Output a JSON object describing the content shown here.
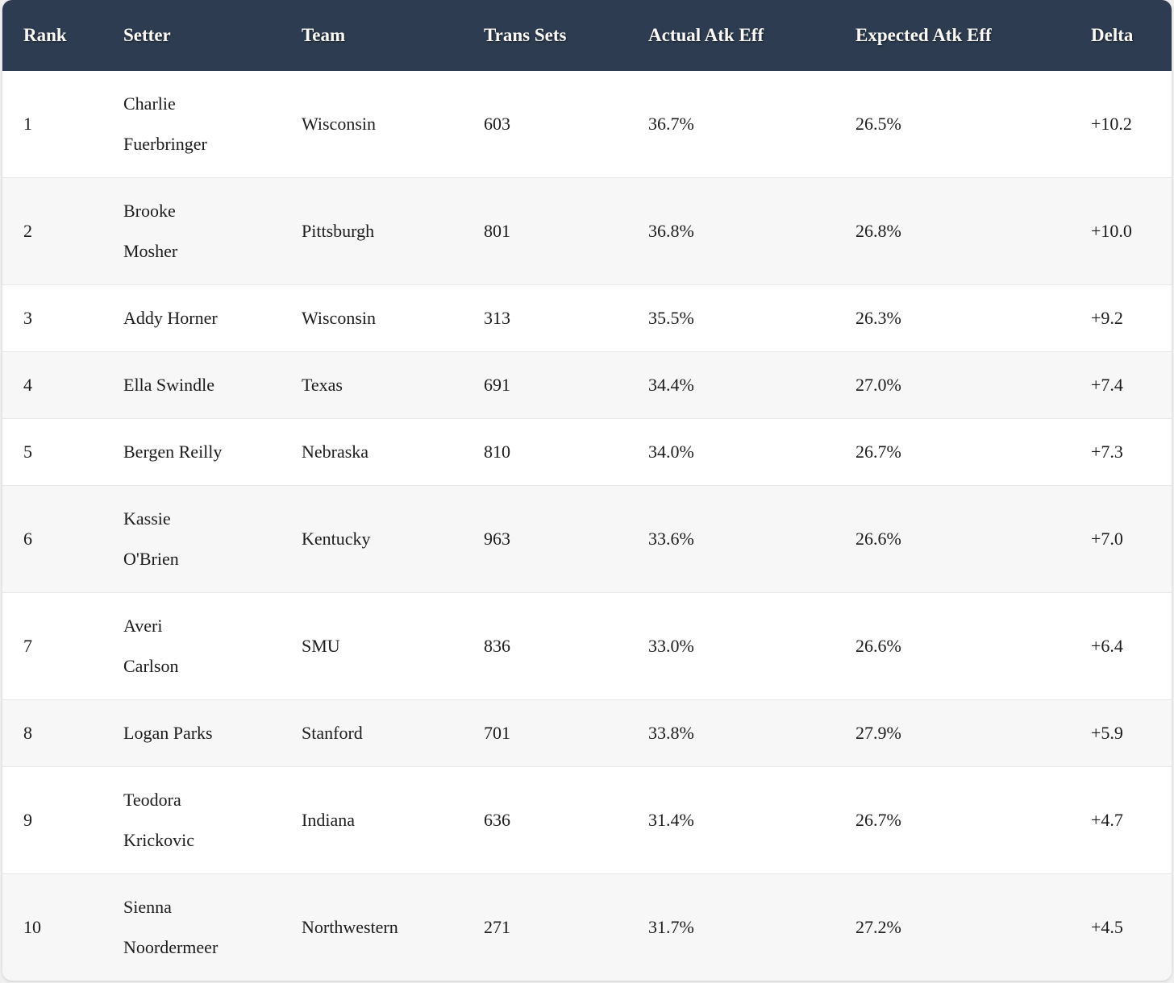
{
  "chart_data": {
    "type": "table",
    "columns": [
      {
        "key": "rank",
        "label": "Rank"
      },
      {
        "key": "setter",
        "label": "Setter"
      },
      {
        "key": "team",
        "label": "Team"
      },
      {
        "key": "trans_sets",
        "label": "Trans Sets"
      },
      {
        "key": "actual_atk_eff",
        "label": "Actual Atk Eff"
      },
      {
        "key": "expected_atk_eff",
        "label": "Expected Atk Eff"
      },
      {
        "key": "delta",
        "label": "Delta"
      }
    ],
    "rows": [
      {
        "rank": "1",
        "setter": [
          "Charlie",
          "Fuerbringer"
        ],
        "team": "Wisconsin",
        "trans_sets": "603",
        "actual_atk_eff": "36.7%",
        "expected_atk_eff": "26.5%",
        "delta": "+10.2"
      },
      {
        "rank": "2",
        "setter": [
          "Brooke",
          "Mosher"
        ],
        "team": "Pittsburgh",
        "trans_sets": "801",
        "actual_atk_eff": "36.8%",
        "expected_atk_eff": "26.8%",
        "delta": "+10.0"
      },
      {
        "rank": "3",
        "setter": [
          "Addy Horner"
        ],
        "team": "Wisconsin",
        "trans_sets": "313",
        "actual_atk_eff": "35.5%",
        "expected_atk_eff": "26.3%",
        "delta": "+9.2"
      },
      {
        "rank": "4",
        "setter": [
          "Ella Swindle"
        ],
        "team": "Texas",
        "trans_sets": "691",
        "actual_atk_eff": "34.4%",
        "expected_atk_eff": "27.0%",
        "delta": "+7.4"
      },
      {
        "rank": "5",
        "setter": [
          "Bergen Reilly"
        ],
        "team": "Nebraska",
        "trans_sets": "810",
        "actual_atk_eff": "34.0%",
        "expected_atk_eff": "26.7%",
        "delta": "+7.3"
      },
      {
        "rank": "6",
        "setter": [
          "Kassie",
          "O'Brien"
        ],
        "team": "Kentucky",
        "trans_sets": "963",
        "actual_atk_eff": "33.6%",
        "expected_atk_eff": "26.6%",
        "delta": "+7.0"
      },
      {
        "rank": "7",
        "setter": [
          "Averi",
          "Carlson"
        ],
        "team": "SMU",
        "trans_sets": "836",
        "actual_atk_eff": "33.0%",
        "expected_atk_eff": "26.6%",
        "delta": "+6.4"
      },
      {
        "rank": "8",
        "setter": [
          "Logan Parks"
        ],
        "team": "Stanford",
        "trans_sets": "701",
        "actual_atk_eff": "33.8%",
        "expected_atk_eff": "27.9%",
        "delta": "+5.9"
      },
      {
        "rank": "9",
        "setter": [
          "Teodora",
          "Krickovic"
        ],
        "team": "Indiana",
        "trans_sets": "636",
        "actual_atk_eff": "31.4%",
        "expected_atk_eff": "26.7%",
        "delta": "+4.7"
      },
      {
        "rank": "10",
        "setter": [
          "Sienna",
          "Noordermeer"
        ],
        "team": "Northwestern",
        "trans_sets": "271",
        "actual_atk_eff": "31.7%",
        "expected_atk_eff": "27.2%",
        "delta": "+4.5"
      }
    ],
    "layout": {
      "header_position": "top",
      "zebra_striping": true,
      "column_alignment": "left"
    }
  },
  "colors": {
    "page_bg": "#efefef",
    "header_bg": "#2d3c50",
    "header_text": "#fbfaf6",
    "row_bg": "#ffffff",
    "row_alt_bg": "#f7f7f7",
    "divider": "#e8e8e8",
    "text": "#1c1c1c"
  }
}
